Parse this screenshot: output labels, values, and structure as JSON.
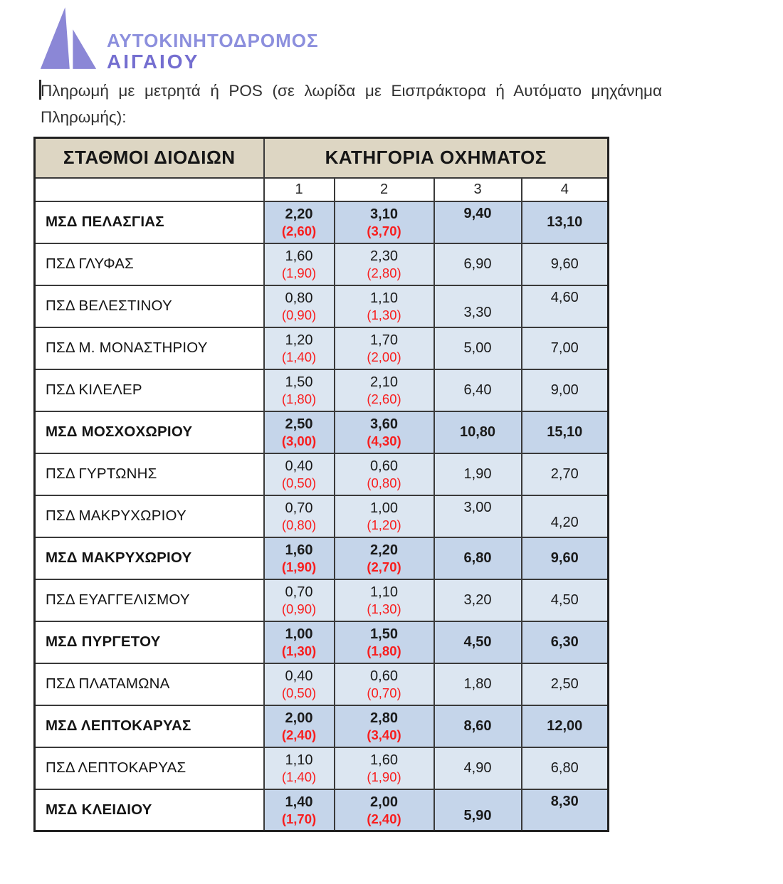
{
  "logo": {
    "company_line1": "ΑΥΤΟΚΙΝΗΤΟΔΡΟΜΟΣ",
    "company_line2": "ΑΙΓΑΙΟΥ",
    "colors": {
      "triangle": "#8b87d6",
      "line1_text": "#8c8fdd",
      "line2_text": "#746ed0"
    }
  },
  "intro": {
    "line1": "Πληρωμή με μετρητά ή POS (σε λωρίδα με Εισπράκτορα ή Αυτόματο μηχάνημα",
    "line2": "Πληρωμής):"
  },
  "table": {
    "stations_header": "ΣΤΑΘΜΟΙ ΔΙΟΔΙΩΝ",
    "category_header": "ΚΑΤΗΓΟΡΙΑ ΟΧΗΜΑΤΟΣ",
    "category_numbers": [
      "1",
      "2",
      "3",
      "4"
    ],
    "colors": {
      "header_bg": "#ddd6c3",
      "msd_cell_bg": "#c5d5ea",
      "psd_cell_bg": "#dce6f1",
      "discount_red": "#f81e1e"
    },
    "rows": [
      {
        "station": "ΜΣΔ ΠΕΛΑΣΓΙΑΣ",
        "type": "msd",
        "cat1": "2,20",
        "cat1_discount": "(2,60)",
        "cat2": "3,10",
        "cat2_discount": "(3,70)",
        "cat3": "9,40",
        "cat4": "13,10",
        "cat3_valign": "top",
        "cat4_valign": "mid"
      },
      {
        "station": "ΠΣΔ ΓΛΥΦΑΣ",
        "type": "psd",
        "cat1": "1,60",
        "cat1_discount": "(1,90)",
        "cat2": "2,30",
        "cat2_discount": "(2,80)",
        "cat3": "6,90",
        "cat4": "9,60",
        "cat3_valign": "mid",
        "cat4_valign": "mid"
      },
      {
        "station": "ΠΣΔ ΒΕΛΕΣΤΙΝΟΥ",
        "type": "psd",
        "cat1": "0,80",
        "cat1_discount": "(0,90)",
        "cat2": "1,10",
        "cat2_discount": "(1,30)",
        "cat3": "3,30",
        "cat4": "4,60",
        "cat3_valign": "low",
        "cat4_valign": "top"
      },
      {
        "station": "ΠΣΔ Μ. ΜΟΝΑΣΤΗΡΙΟΥ",
        "type": "psd",
        "cat1": "1,20",
        "cat1_discount": "(1,40)",
        "cat2": "1,70",
        "cat2_discount": "(2,00)",
        "cat3": "5,00",
        "cat4": "7,00",
        "cat3_valign": "mid",
        "cat4_valign": "mid"
      },
      {
        "station": "ΠΣΔ ΚΙΛΕΛΕΡ",
        "type": "psd",
        "cat1": "1,50",
        "cat1_discount": "(1,80)",
        "cat2": "2,10",
        "cat2_discount": "(2,60)",
        "cat3": "6,40",
        "cat4": "9,00",
        "cat3_valign": "mid",
        "cat4_valign": "mid"
      },
      {
        "station": "ΜΣΔ ΜΟΣΧΟΧΩΡΙΟΥ",
        "type": "msd",
        "cat1": "2,50",
        "cat1_discount": "(3,00)",
        "cat2": "3,60",
        "cat2_discount": "(4,30)",
        "cat3": "10,80",
        "cat4": "15,10",
        "cat3_valign": "mid",
        "cat4_valign": "mid"
      },
      {
        "station": "ΠΣΔ ΓΥΡΤΩΝΗΣ",
        "type": "psd",
        "cat1": "0,40",
        "cat1_discount": "(0,50)",
        "cat2": "0,60",
        "cat2_discount": "(0,80)",
        "cat3": "1,90",
        "cat4": "2,70",
        "cat3_valign": "mid",
        "cat4_valign": "mid"
      },
      {
        "station": "ΠΣΔ ΜΑΚΡΥΧΩΡΙΟΥ",
        "type": "psd",
        "cat1": "0,70",
        "cat1_discount": "(0,80)",
        "cat2": "1,00",
        "cat2_discount": "(1,20)",
        "cat3": "3,00",
        "cat4": "4,20",
        "cat3_valign": "top",
        "cat4_valign": "low"
      },
      {
        "station": "ΜΣΔ ΜΑΚΡΥΧΩΡΙΟΥ",
        "type": "msd",
        "cat1": "1,60",
        "cat1_discount": "(1,90)",
        "cat2": "2,20",
        "cat2_discount": "(2,70)",
        "cat3": "6,80",
        "cat4": "9,60",
        "cat3_valign": "mid",
        "cat4_valign": "mid"
      },
      {
        "station": "ΠΣΔ ΕΥΑΓΓΕΛΙΣΜΟΥ",
        "type": "psd",
        "cat1": "0,70",
        "cat1_discount": "(0,90)",
        "cat2": "1,10",
        "cat2_discount": "(1,30)",
        "cat3": "3,20",
        "cat4": "4,50",
        "cat3_valign": "mid",
        "cat4_valign": "mid"
      },
      {
        "station": "ΜΣΔ ΠΥΡΓΕΤΟΥ",
        "type": "msd",
        "cat1": "1,00",
        "cat1_discount": "(1,30)",
        "cat2": "1,50",
        "cat2_discount": "(1,80)",
        "cat3": "4,50",
        "cat4": "6,30",
        "cat3_valign": "mid",
        "cat4_valign": "mid"
      },
      {
        "station": "ΠΣΔ ΠΛΑΤΑΜΩΝΑ",
        "type": "psd",
        "cat1": "0,40",
        "cat1_discount": "(0,50)",
        "cat2": "0,60",
        "cat2_discount": "(0,70)",
        "cat3": "1,80",
        "cat4": "2,50",
        "cat3_valign": "mid",
        "cat4_valign": "mid"
      },
      {
        "station": "ΜΣΔ ΛΕΠΤΟΚΑΡΥΑΣ",
        "type": "msd",
        "cat1": "2,00",
        "cat1_discount": "(2,40)",
        "cat2": "2,80",
        "cat2_discount": "(3,40)",
        "cat3": "8,60",
        "cat4": "12,00",
        "cat3_valign": "mid",
        "cat4_valign": "mid"
      },
      {
        "station": "ΠΣΔ ΛΕΠΤΟΚΑΡΥΑΣ",
        "type": "psd",
        "cat1": "1,10",
        "cat1_discount": "(1,40)",
        "cat2": "1,60",
        "cat2_discount": "(1,90)",
        "cat3": "4,90",
        "cat4": "6,80",
        "cat3_valign": "mid",
        "cat4_valign": "mid"
      },
      {
        "station": "ΜΣΔ ΚΛΕΙΔΙΟΥ",
        "type": "msd",
        "cat1": "1,40",
        "cat1_discount": "(1,70)",
        "cat2": "2,00",
        "cat2_discount": "(2,40)",
        "cat3": "5,90",
        "cat4": "8,30",
        "cat3_valign": "low",
        "cat4_valign": "top"
      }
    ]
  }
}
